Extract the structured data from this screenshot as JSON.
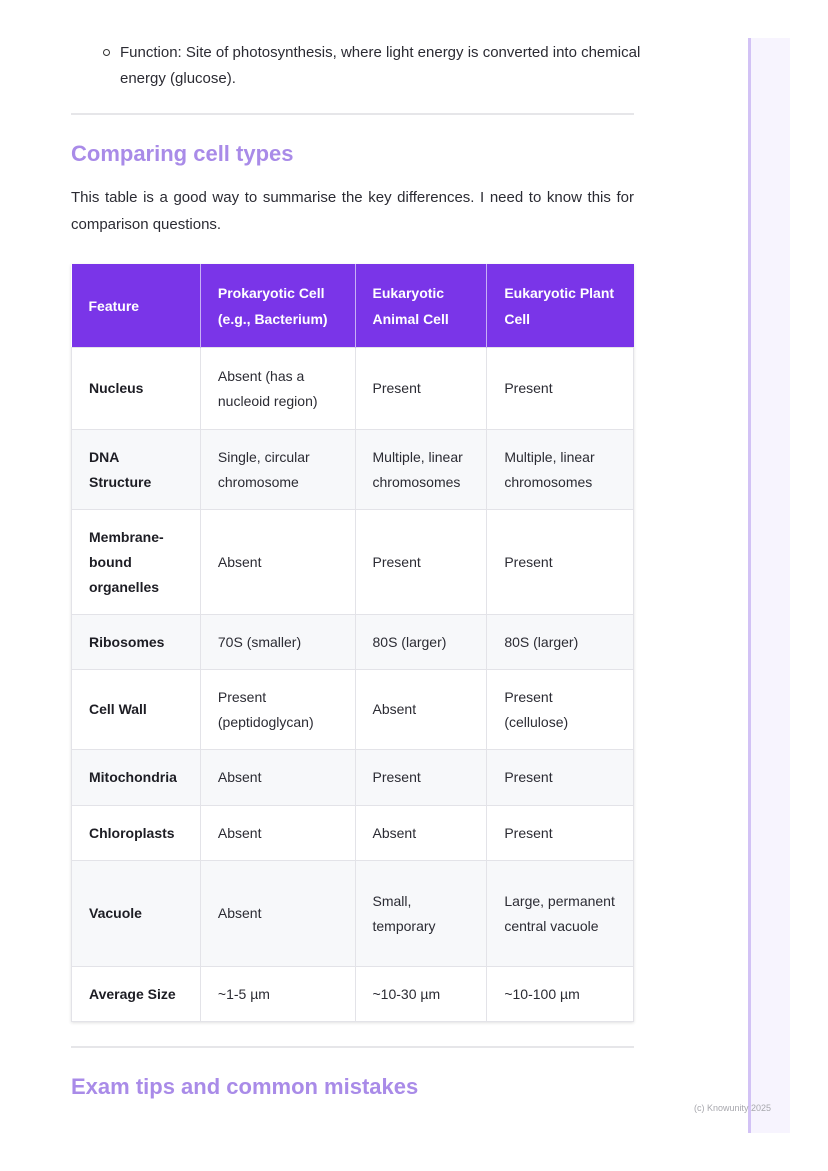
{
  "bullet": "Function: Site of photosynthesis, where light energy is converted into chemical energy (glucose).",
  "section1": {
    "title": "Comparing cell types",
    "intro": "This table is a good way to summarise the key differences. I need to know this for comparison questions."
  },
  "table": {
    "headers": [
      "Feature",
      "Prokaryotic Cell (e.g., Bacterium)",
      "Eukaryotic Animal Cell",
      "Eukaryotic Plant Cell"
    ],
    "rows": [
      [
        "Nucleus",
        "Absent (has a nucleoid region)",
        "Present",
        "Present"
      ],
      [
        "DNA Structure",
        "Single, circular chromosome",
        "Multiple, linear chromosomes",
        "Multiple, linear chromosomes"
      ],
      [
        "Membrane-bound organelles",
        "Absent",
        "Present",
        "Present"
      ],
      [
        "Ribosomes",
        "70S (smaller)",
        "80S (larger)",
        "80S (larger)"
      ],
      [
        "Cell Wall",
        "Present (peptidoglycan)",
        "Absent",
        "Present (cellulose)"
      ],
      [
        "Mitochondria",
        "Absent",
        "Present",
        "Present"
      ],
      [
        "Chloroplasts",
        "Absent",
        "Absent",
        "Present"
      ],
      [
        "Vacuole",
        "Absent",
        "Small, temporary",
        "Large, permanent central vacuole"
      ],
      [
        "Average Size",
        "~1-5 µm",
        "~10-30 µm",
        "~10-100 µm"
      ]
    ]
  },
  "section2": {
    "title": "Exam tips and common mistakes"
  },
  "footer": "(c) Knowunity 2025",
  "colors": {
    "accent": "#7a35e8",
    "heading": "#a98be8"
  }
}
